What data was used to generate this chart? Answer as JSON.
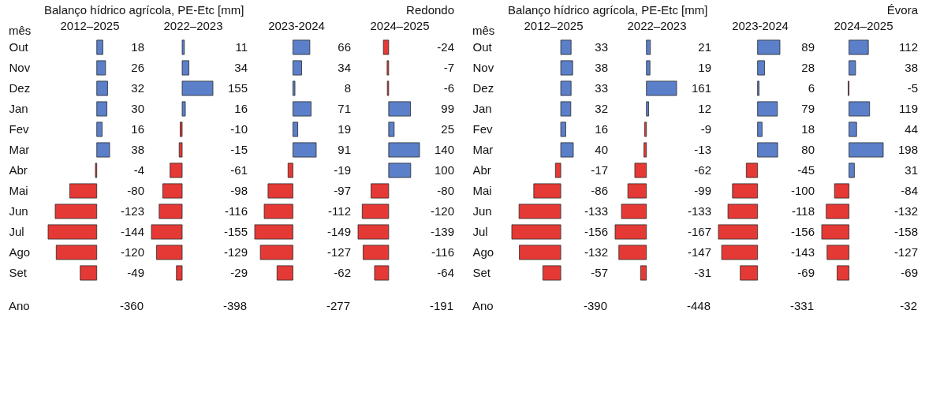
{
  "chart_data": [
    {
      "type": "bar",
      "orientation": "horizontal",
      "title": "2012–2025",
      "ylabel": "mês",
      "tick_labels": "y",
      "data_labels": true,
      "categories": [
        "Out",
        "Nov",
        "Dez",
        "Jan",
        "Fev",
        "Mar",
        "Abr",
        "Mai",
        "Jun",
        "Jul",
        "Ago",
        "Set"
      ],
      "values": [
        18,
        26,
        32,
        30,
        16,
        38,
        -4,
        -80,
        -123,
        -144,
        -120,
        -49
      ],
      "colors": [
        "#5b7fc9",
        "#5b7fc9",
        "#5b7fc9",
        "#5b7fc9",
        "#5b7fc9",
        "#5b7fc9",
        "#e53935",
        "#e53935",
        "#e53935",
        "#e53935",
        "#e53935",
        "#e53935"
      ],
      "annotations": [
        "Balanço hídrico agrícola, PE-Etc [mm]",
        "Ano",
        "-360"
      ]
    },
    {
      "type": "bar",
      "orientation": "horizontal",
      "title": "2022–2023",
      "tick_labels": false,
      "data_labels": true,
      "categories": [
        null,
        null,
        null,
        null,
        null,
        null,
        null,
        null,
        null,
        null,
        null,
        null
      ],
      "values": [
        11,
        34,
        155,
        16,
        -10,
        -15,
        -61,
        -98,
        -116,
        -155,
        -129,
        -29
      ],
      "colors": [
        "#5b7fc9",
        "#5b7fc9",
        "#5b7fc9",
        "#5b7fc9",
        "#e53935",
        "#e53935",
        "#e53935",
        "#e53935",
        "#e53935",
        "#e53935",
        "#e53935",
        "#e53935"
      ],
      "annotations": [
        "-398"
      ]
    },
    {
      "type": "bar",
      "orientation": "horizontal",
      "title": "2023-2024",
      "tick_labels": false,
      "data_labels": true,
      "categories": [
        null,
        null,
        null,
        null,
        null,
        null,
        null,
        null,
        null,
        null,
        null,
        null
      ],
      "values": [
        66,
        34,
        8,
        71,
        19,
        91,
        -19,
        -97,
        -112,
        -149,
        -127,
        -62
      ],
      "colors": [
        "#5b7fc9",
        "#5b7fc9",
        "#5b7fc9",
        "#5b7fc9",
        "#5b7fc9",
        "#5b7fc9",
        "#e53935",
        "#e53935",
        "#e53935",
        "#e53935",
        "#e53935",
        "#e53935"
      ],
      "annotations": [
        "-277"
      ]
    },
    {
      "type": "bar",
      "orientation": "horizontal",
      "title": "2024–2025",
      "tick_labels": false,
      "data_labels": true,
      "categories": [
        null,
        null,
        null,
        null,
        null,
        null,
        null,
        null,
        null,
        null,
        null,
        null
      ],
      "values": [
        -24,
        -7,
        -6,
        99,
        25,
        140,
        100,
        -80,
        -120,
        -139,
        -116,
        -64
      ],
      "colors": [
        "#e53935",
        "#e53935",
        "#e53935",
        "#5b7fc9",
        "#5b7fc9",
        "#5b7fc9",
        "#5b7fc9",
        "#e53935",
        "#e53935",
        "#e53935",
        "#e53935",
        "#e53935"
      ],
      "annotations": [
        "Redondo",
        "-191"
      ]
    },
    {
      "type": "bar",
      "orientation": "horizontal",
      "title": "2012–2025",
      "ylabel": "mês",
      "tick_labels": "y",
      "data_labels": true,
      "categories": [
        "Out",
        "Nov",
        "Dez",
        "Jan",
        "Fev",
        "Mar",
        "Abr",
        "Mai",
        "Jun",
        "Jul",
        "Ago",
        "Set"
      ],
      "values": [
        33,
        38,
        33,
        32,
        16,
        40,
        -17,
        -86,
        -133,
        -156,
        -132,
        -57
      ],
      "colors": [
        "#5b7fc9",
        "#5b7fc9",
        "#5b7fc9",
        "#5b7fc9",
        "#5b7fc9",
        "#5b7fc9",
        "#e53935",
        "#e53935",
        "#e53935",
        "#e53935",
        "#e53935",
        "#e53935"
      ],
      "annotations": [
        "Balanço hídrico agrícola, PE-Etc [mm]",
        "Ano",
        "-390"
      ]
    },
    {
      "type": "bar",
      "orientation": "horizontal",
      "title": "2022–2023",
      "tick_labels": false,
      "data_labels": true,
      "categories": [
        null,
        null,
        null,
        null,
        null,
        null,
        null,
        null,
        null,
        null,
        null,
        null
      ],
      "values": [
        21,
        19,
        161,
        12,
        -9,
        -13,
        -62,
        -99,
        -133,
        -167,
        -147,
        -31
      ],
      "colors": [
        "#5b7fc9",
        "#5b7fc9",
        "#5b7fc9",
        "#5b7fc9",
        "#e53935",
        "#e53935",
        "#e53935",
        "#e53935",
        "#e53935",
        "#e53935",
        "#e53935",
        "#e53935"
      ],
      "annotations": [
        "-448"
      ]
    },
    {
      "type": "bar",
      "orientation": "horizontal",
      "title": "2023-2024",
      "tick_labels": false,
      "data_labels": true,
      "categories": [
        null,
        null,
        null,
        null,
        null,
        null,
        null,
        null,
        null,
        null,
        null,
        null
      ],
      "values": [
        89,
        28,
        6,
        79,
        18,
        80,
        -45,
        -100,
        -118,
        -156,
        -143,
        -69
      ],
      "colors": [
        "#5b7fc9",
        "#5b7fc9",
        "#5b7fc9",
        "#5b7fc9",
        "#5b7fc9",
        "#5b7fc9",
        "#e53935",
        "#e53935",
        "#e53935",
        "#e53935",
        "#e53935",
        "#e53935"
      ],
      "annotations": [
        "-331"
      ]
    },
    {
      "type": "bar",
      "orientation": "horizontal",
      "title": "2024–2025",
      "tick_labels": false,
      "data_labels": true,
      "categories": [
        null,
        null,
        null,
        null,
        null,
        null,
        null,
        null,
        null,
        null,
        null,
        null
      ],
      "values": [
        112,
        38,
        -5,
        119,
        44,
        198,
        31,
        -84,
        -132,
        -158,
        -127,
        -69
      ],
      "colors": [
        "#5b7fc9",
        "#5b7fc9",
        "#e53935",
        "#5b7fc9",
        "#5b7fc9",
        "#5b7fc9",
        "#5b7fc9",
        "#e53935",
        "#e53935",
        "#e53935",
        "#e53935",
        "#e53935"
      ],
      "annotations": [
        "Évora",
        "-32"
      ]
    }
  ]
}
